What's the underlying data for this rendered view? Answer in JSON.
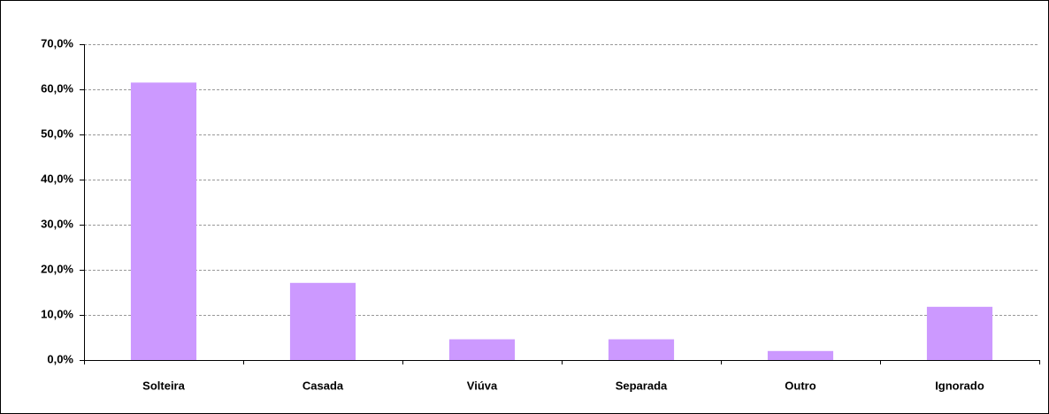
{
  "chart_data": {
    "type": "bar",
    "categories": [
      "Solteira",
      "Casada",
      "Viúva",
      "Separada",
      "Outro",
      "Ignorado"
    ],
    "values": [
      61.5,
      17.1,
      4.6,
      4.6,
      2.0,
      11.8
    ],
    "color": "#cc99ff",
    "ylim": [
      0,
      70
    ],
    "yticks": [
      {
        "value": 0,
        "label": "0,0%"
      },
      {
        "value": 10,
        "label": "10,0%"
      },
      {
        "value": 20,
        "label": "20,0%"
      },
      {
        "value": 30,
        "label": "30,0%"
      },
      {
        "value": 40,
        "label": "40,0%"
      },
      {
        "value": 50,
        "label": "50,0%"
      },
      {
        "value": 60,
        "label": "60,0%"
      },
      {
        "value": 70,
        "label": "70,0%"
      }
    ],
    "grid": true
  }
}
